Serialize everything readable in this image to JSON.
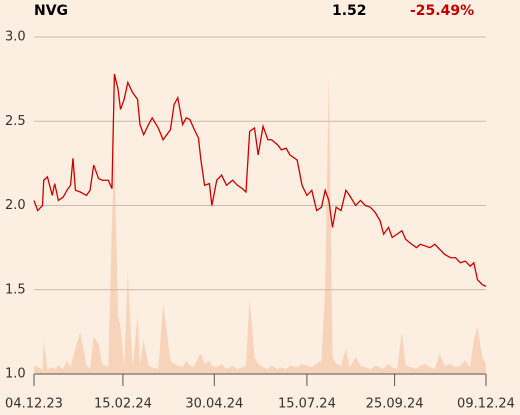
{
  "header": {
    "symbol": "NVG",
    "price": "1.52",
    "change": "-25.49%"
  },
  "chart_data": {
    "type": "line",
    "x": [
      0,
      3,
      7,
      8,
      11,
      15,
      17,
      20,
      24,
      27,
      30,
      32,
      34,
      38,
      43,
      46,
      49,
      53,
      56,
      61,
      64,
      66,
      69,
      71,
      74,
      77,
      81,
      85,
      87,
      90,
      94,
      97,
      102,
      106,
      112,
      115,
      118,
      122,
      125,
      128,
      131,
      135,
      137,
      140,
      144,
      146,
      150,
      154,
      158,
      163,
      167,
      171,
      174,
      177,
      181,
      184,
      188,
      192,
      195,
      200,
      203,
      207,
      210,
      216,
      220,
      224,
      228,
      232,
      236,
      239,
      242,
      245,
      248,
      252,
      256,
      259,
      264,
      268,
      272,
      276,
      280,
      284,
      287,
      291,
      294,
      298,
      302,
      305,
      310,
      314,
      317,
      321,
      325,
      329,
      333,
      337,
      342,
      346,
      350,
      354,
      358,
      361,
      364,
      368,
      371
    ],
    "series": [
      {
        "color": "#f7d4b9",
        "style": "area",
        "values": [
          1.05,
          1.04,
          1.03,
          1.2,
          1.03,
          1.04,
          1.03,
          1.05,
          1.03,
          1.08,
          1.04,
          1.1,
          1.15,
          1.25,
          1.05,
          1.03,
          1.22,
          1.18,
          1.06,
          1.04,
          1.9,
          2.3,
          1.35,
          1.28,
          1.05,
          1.6,
          1.04,
          1.35,
          1.06,
          1.2,
          1.05,
          1.04,
          1.03,
          1.42,
          1.08,
          1.06,
          1.05,
          1.04,
          1.08,
          1.05,
          1.04,
          1.1,
          1.12,
          1.06,
          1.08,
          1.05,
          1.04,
          1.06,
          1.03,
          1.05,
          1.03,
          1.04,
          1.05,
          1.45,
          1.1,
          1.06,
          1.04,
          1.03,
          1.05,
          1.03,
          1.04,
          1.03,
          1.05,
          1.04,
          1.06,
          1.05,
          1.04,
          1.06,
          1.08,
          1.5,
          2.78,
          1.1,
          1.06,
          1.05,
          1.15,
          1.04,
          1.1,
          1.05,
          1.04,
          1.03,
          1.05,
          1.04,
          1.03,
          1.06,
          1.04,
          1.03,
          1.25,
          1.05,
          1.04,
          1.03,
          1.05,
          1.06,
          1.04,
          1.03,
          1.12,
          1.05,
          1.06,
          1.04,
          1.05,
          1.08,
          1.04,
          1.2,
          1.28,
          1.1,
          1.06
        ]
      },
      {
        "color": "#cc0000",
        "style": "line",
        "values": [
          2.03,
          1.97,
          2.0,
          2.15,
          2.17,
          2.06,
          2.13,
          2.03,
          2.05,
          2.09,
          2.12,
          2.28,
          2.09,
          2.08,
          2.06,
          2.09,
          2.24,
          2.16,
          2.15,
          2.15,
          2.1,
          2.78,
          2.69,
          2.57,
          2.63,
          2.73,
          2.67,
          2.63,
          2.48,
          2.42,
          2.48,
          2.52,
          2.46,
          2.39,
          2.45,
          2.6,
          2.64,
          2.48,
          2.52,
          2.51,
          2.46,
          2.4,
          2.27,
          2.12,
          2.13,
          2.0,
          2.15,
          2.18,
          2.12,
          2.15,
          2.12,
          2.1,
          2.08,
          2.44,
          2.46,
          2.3,
          2.47,
          2.39,
          2.39,
          2.36,
          2.33,
          2.34,
          2.3,
          2.27,
          2.12,
          2.06,
          2.09,
          1.97,
          1.99,
          2.09,
          2.03,
          1.87,
          1.99,
          1.97,
          2.09,
          2.06,
          2.0,
          2.03,
          2.0,
          1.99,
          1.96,
          1.91,
          1.83,
          1.87,
          1.81,
          1.83,
          1.85,
          1.8,
          1.77,
          1.75,
          1.77,
          1.76,
          1.75,
          1.77,
          1.74,
          1.71,
          1.69,
          1.69,
          1.66,
          1.67,
          1.64,
          1.66,
          1.56,
          1.53,
          1.52
        ]
      }
    ],
    "xlim": [
      0,
      371
    ],
    "xticks": [
      {
        "value": 0,
        "label": "04.12.23"
      },
      {
        "value": 73,
        "label": "15.02.24"
      },
      {
        "value": 148,
        "label": "30.04.24"
      },
      {
        "value": 224,
        "label": "15.07.24"
      },
      {
        "value": 296,
        "label": "25.09.24"
      },
      {
        "value": 371,
        "label": "09.12.24"
      }
    ],
    "ylim": [
      1,
      3
    ],
    "yticks": [
      {
        "value": 1,
        "label": "1.0"
      },
      {
        "value": 1.5,
        "label": "1.5"
      },
      {
        "value": 2,
        "label": "2.0"
      },
      {
        "value": 2.5,
        "label": "2.5"
      },
      {
        "value": 3,
        "label": "3.0"
      }
    ],
    "grid": true
  }
}
